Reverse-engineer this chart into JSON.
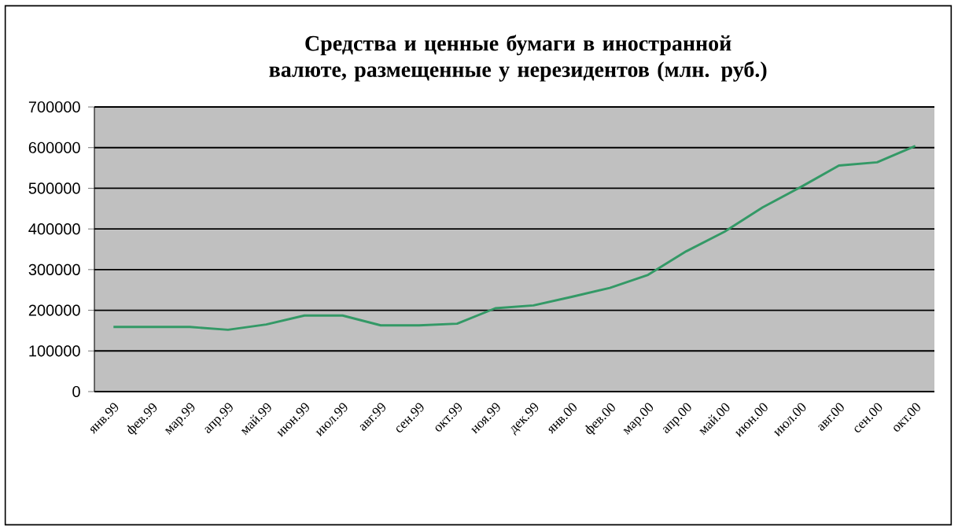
{
  "chart_data": {
    "type": "line",
    "title": "Средства и ценные бумаги в иностранной валюте, размещенные у нерезидентов (млн. руб.)",
    "categories": [
      "янв.99",
      "фев.99",
      "мар.99",
      "апр.99",
      "май.99",
      "июн.99",
      "июл.99",
      "авг.99",
      "сен.99",
      "окт.99",
      "ноя.99",
      "дек.99",
      "янв.00",
      "фев.00",
      "мар.00",
      "апр.00",
      "май.00",
      "июн.00",
      "июл.00",
      "авг.00",
      "сен.00",
      "окт.00"
    ],
    "series": [
      {
        "color": "#339966",
        "values": [
          159000,
          159000,
          159000,
          152000,
          165000,
          187000,
          187000,
          163000,
          163000,
          167000,
          205000,
          212000,
          233000,
          255000,
          287000,
          345000,
          393000,
          453000,
          503000,
          556000,
          564000,
          604000
        ]
      }
    ],
    "ylim": [
      0,
      700000
    ],
    "yticks": [
      0,
      100000,
      200000,
      300000,
      400000,
      500000,
      600000,
      700000
    ],
    "grid": "y",
    "marker": "none",
    "line_style": "solid"
  }
}
